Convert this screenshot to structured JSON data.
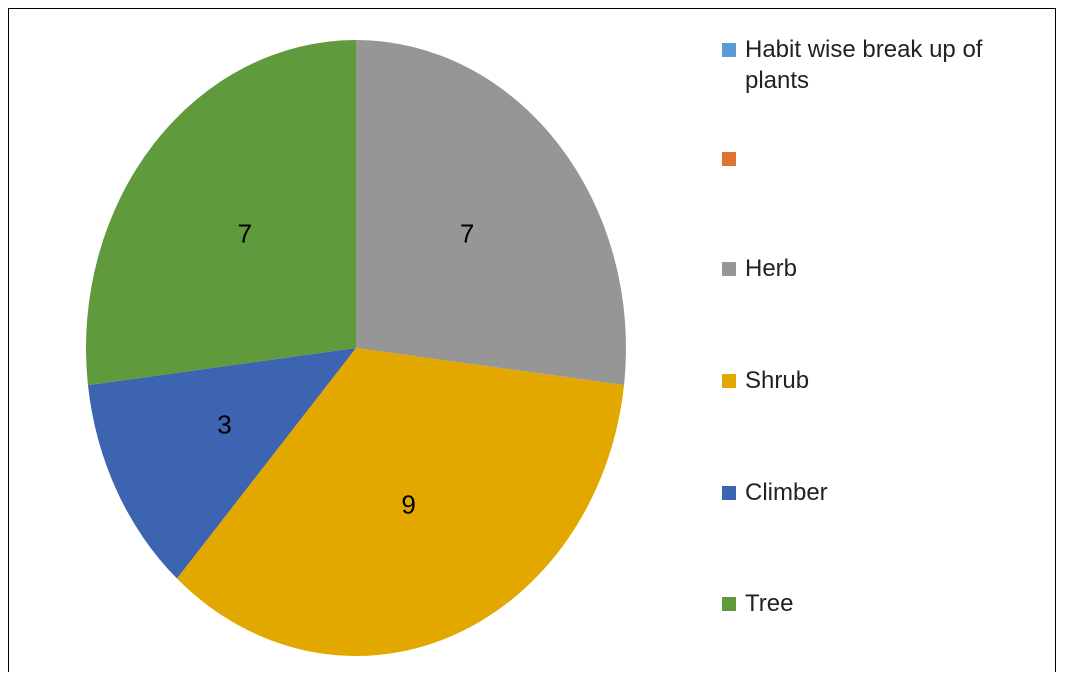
{
  "chart_data": {
    "type": "pie",
    "categories": [
      "Habit wise break up of plants",
      null,
      "Herb",
      "Shrub",
      "Climber",
      "Tree"
    ],
    "values": [
      null,
      null,
      7,
      9,
      3,
      7
    ],
    "colors": [
      "#5b9bd5",
      "#e0722f",
      "#969696",
      "#e2a800",
      "#3d64b0",
      "#5f9a3d"
    ],
    "legend": "right"
  }
}
